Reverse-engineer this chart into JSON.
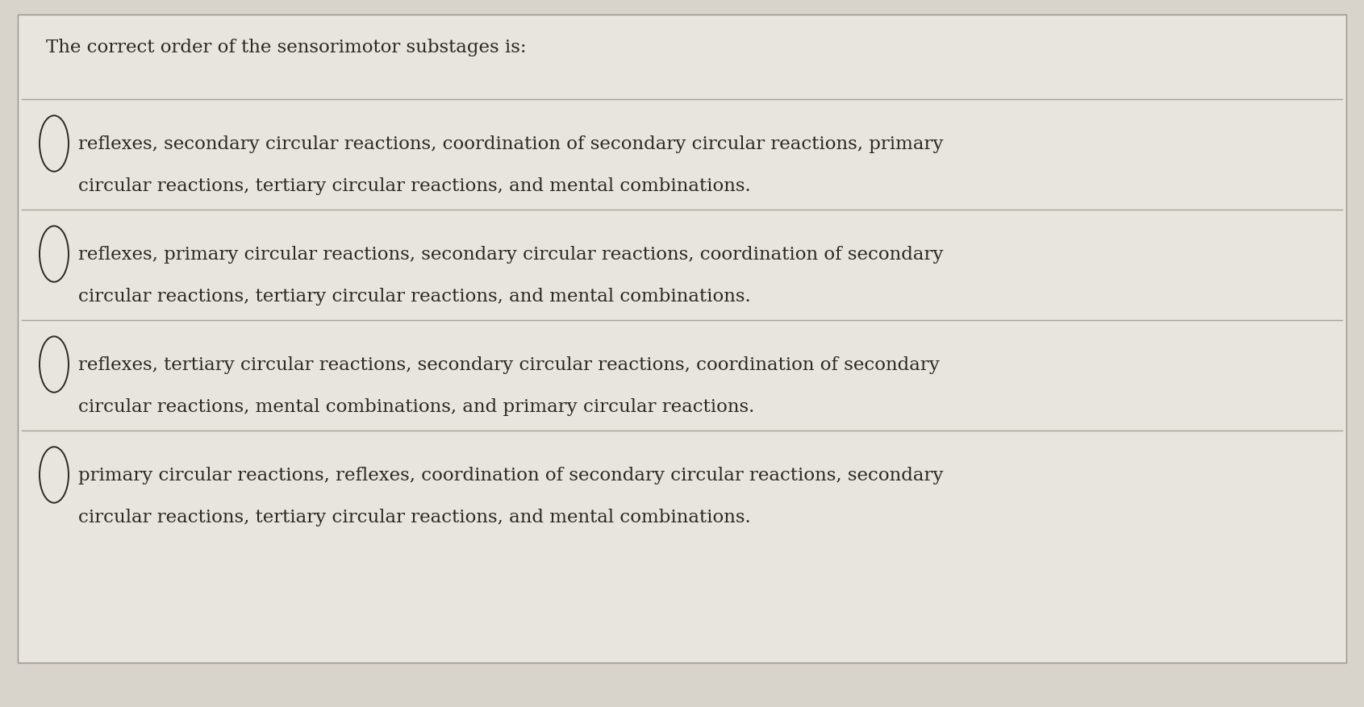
{
  "background_color": "#d8d4cc",
  "card_color": "#e8e5df",
  "card_border_color": "#999088",
  "question_text": "The correct order of the sensorimotor substages is:",
  "question_fontsize": 16.5,
  "question_color": "#2d2920",
  "options": [
    {
      "line1": "reflexes, secondary circular reactions, coordination of secondary circular reactions, primary",
      "line2": "circular reactions, tertiary circular reactions, and mental combinations."
    },
    {
      "line1": "reflexes, primary circular reactions, secondary circular reactions, coordination of secondary",
      "line2": "circular reactions, tertiary circular reactions, and mental combinations."
    },
    {
      "line1": "reflexes, tertiary circular reactions, secondary circular reactions, coordination of secondary",
      "line2": "circular reactions, mental combinations, and primary circular reactions."
    },
    {
      "line1": "primary circular reactions, reflexes, coordination of secondary circular reactions, secondary",
      "line2": "circular reactions, tertiary circular reactions, and mental combinations."
    }
  ],
  "option_fontsize": 16.5,
  "option_color": "#2d2920",
  "circle_color": "#2d2920",
  "separator_color": "#aaa090",
  "separator_linewidth": 1.0
}
